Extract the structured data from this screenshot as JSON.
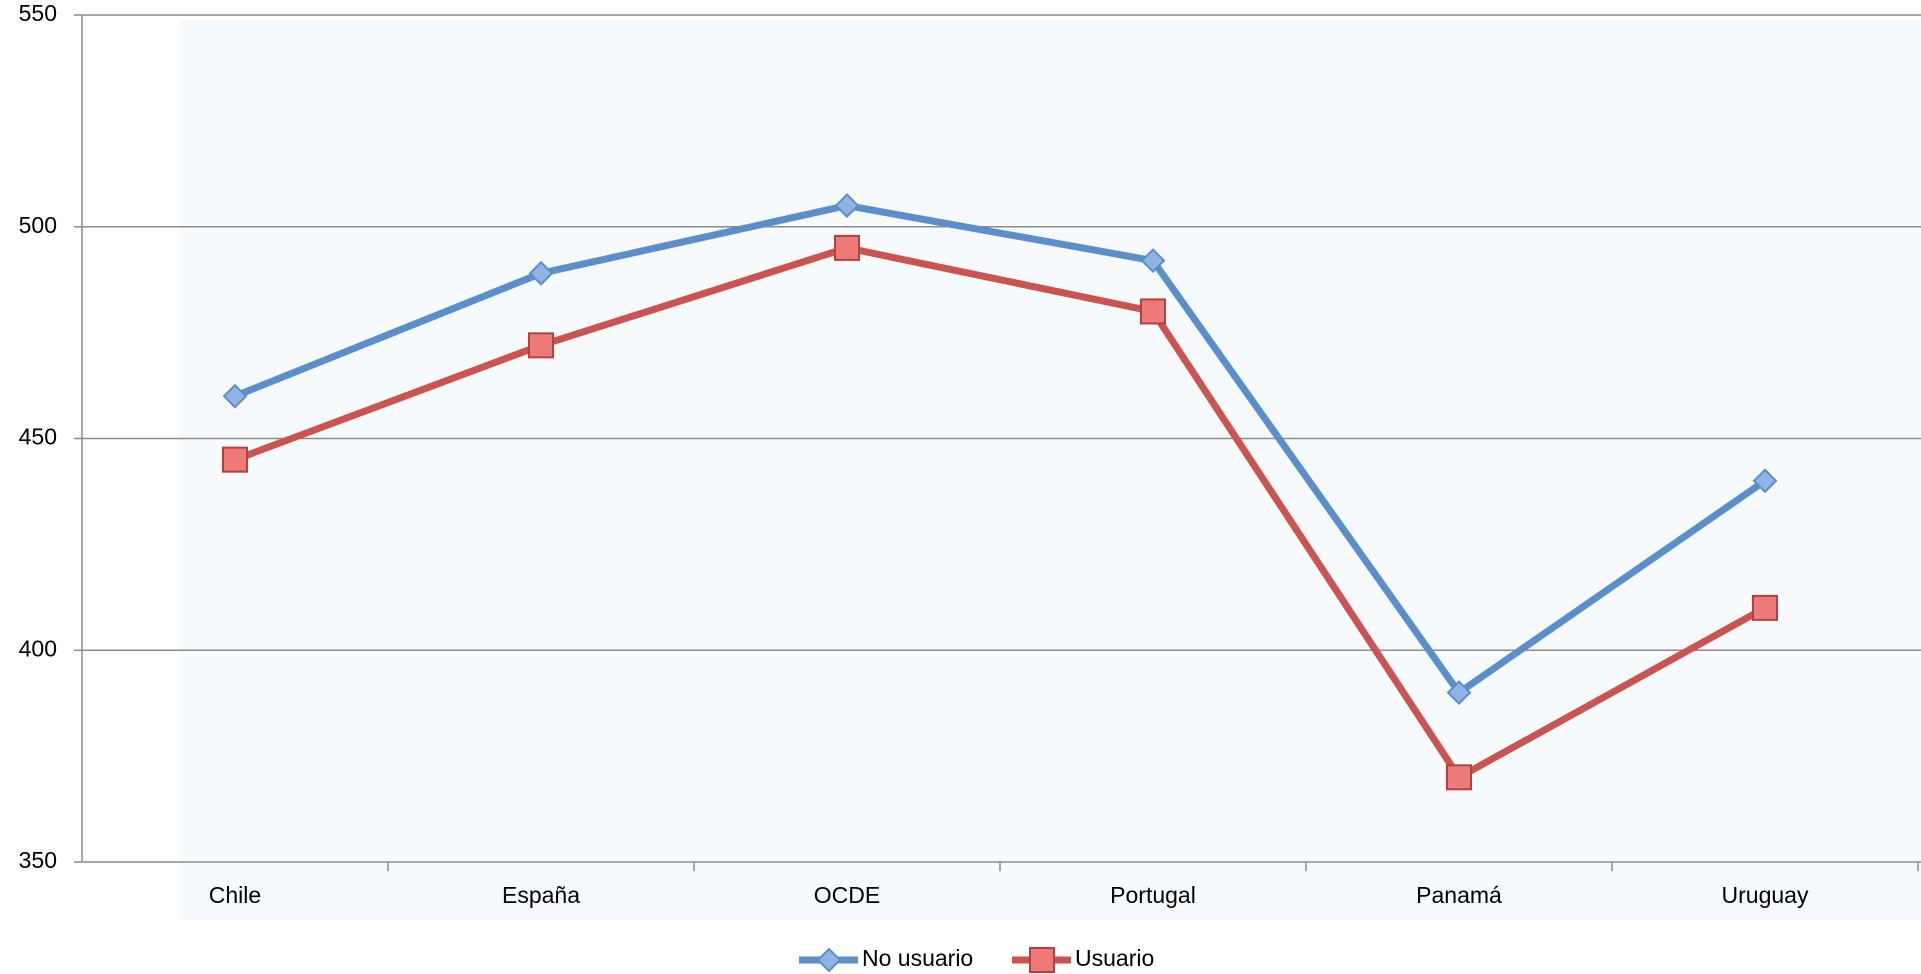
{
  "chart_data": {
    "type": "line",
    "categories": [
      "Chile",
      "España",
      "OCDE",
      "Portugal",
      "Panamá",
      "Uruguay"
    ],
    "series": [
      {
        "name": "No usuario",
        "color": "#5b8fcc",
        "values": [
          460,
          489,
          505,
          492,
          390,
          440
        ]
      },
      {
        "name": "Usuario",
        "color": "#cc5450",
        "values": [
          445,
          472,
          495,
          480,
          370,
          410
        ]
      }
    ],
    "ylim": [
      350,
      550
    ],
    "yticks": [
      350,
      400,
      450,
      500,
      550
    ],
    "grid": true,
    "legend": "bottom"
  }
}
